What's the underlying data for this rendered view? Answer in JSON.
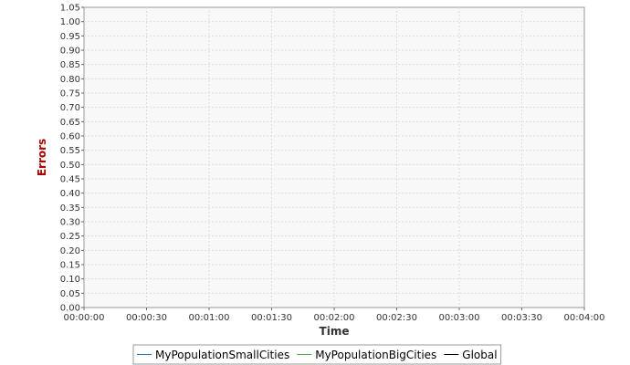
{
  "chart_data": {
    "type": "line",
    "xlabel": "Time",
    "ylabel": "Errors",
    "xlim": [
      "00:00:00",
      "00:04:00"
    ],
    "ylim": [
      0,
      1.05
    ],
    "x_ticks": [
      "00:00:00",
      "00:00:30",
      "00:01:00",
      "00:01:30",
      "00:02:00",
      "00:02:30",
      "00:03:00",
      "00:03:30",
      "00:04:00"
    ],
    "y_ticks": [
      "0.00",
      "0.05",
      "0.10",
      "0.15",
      "0.20",
      "0.25",
      "0.30",
      "0.35",
      "0.40",
      "0.45",
      "0.50",
      "0.55",
      "0.60",
      "0.65",
      "0.70",
      "0.75",
      "0.80",
      "0.85",
      "0.90",
      "0.95",
      "1.00",
      "1.05"
    ],
    "grid": true,
    "legend_position": "bottom",
    "series": [
      {
        "name": "MyPopulationSmallCities",
        "color": "#2b7bba",
        "values": []
      },
      {
        "name": "MyPopulationBigCities",
        "color": "#55aa55",
        "values": []
      },
      {
        "name": "Global",
        "color": "#000000",
        "values": []
      }
    ],
    "colors": {
      "ylabel": "#aa0000",
      "xlabel": "#333333",
      "plot_background": "#f8f8f8",
      "gridline": "#dddddd"
    }
  }
}
